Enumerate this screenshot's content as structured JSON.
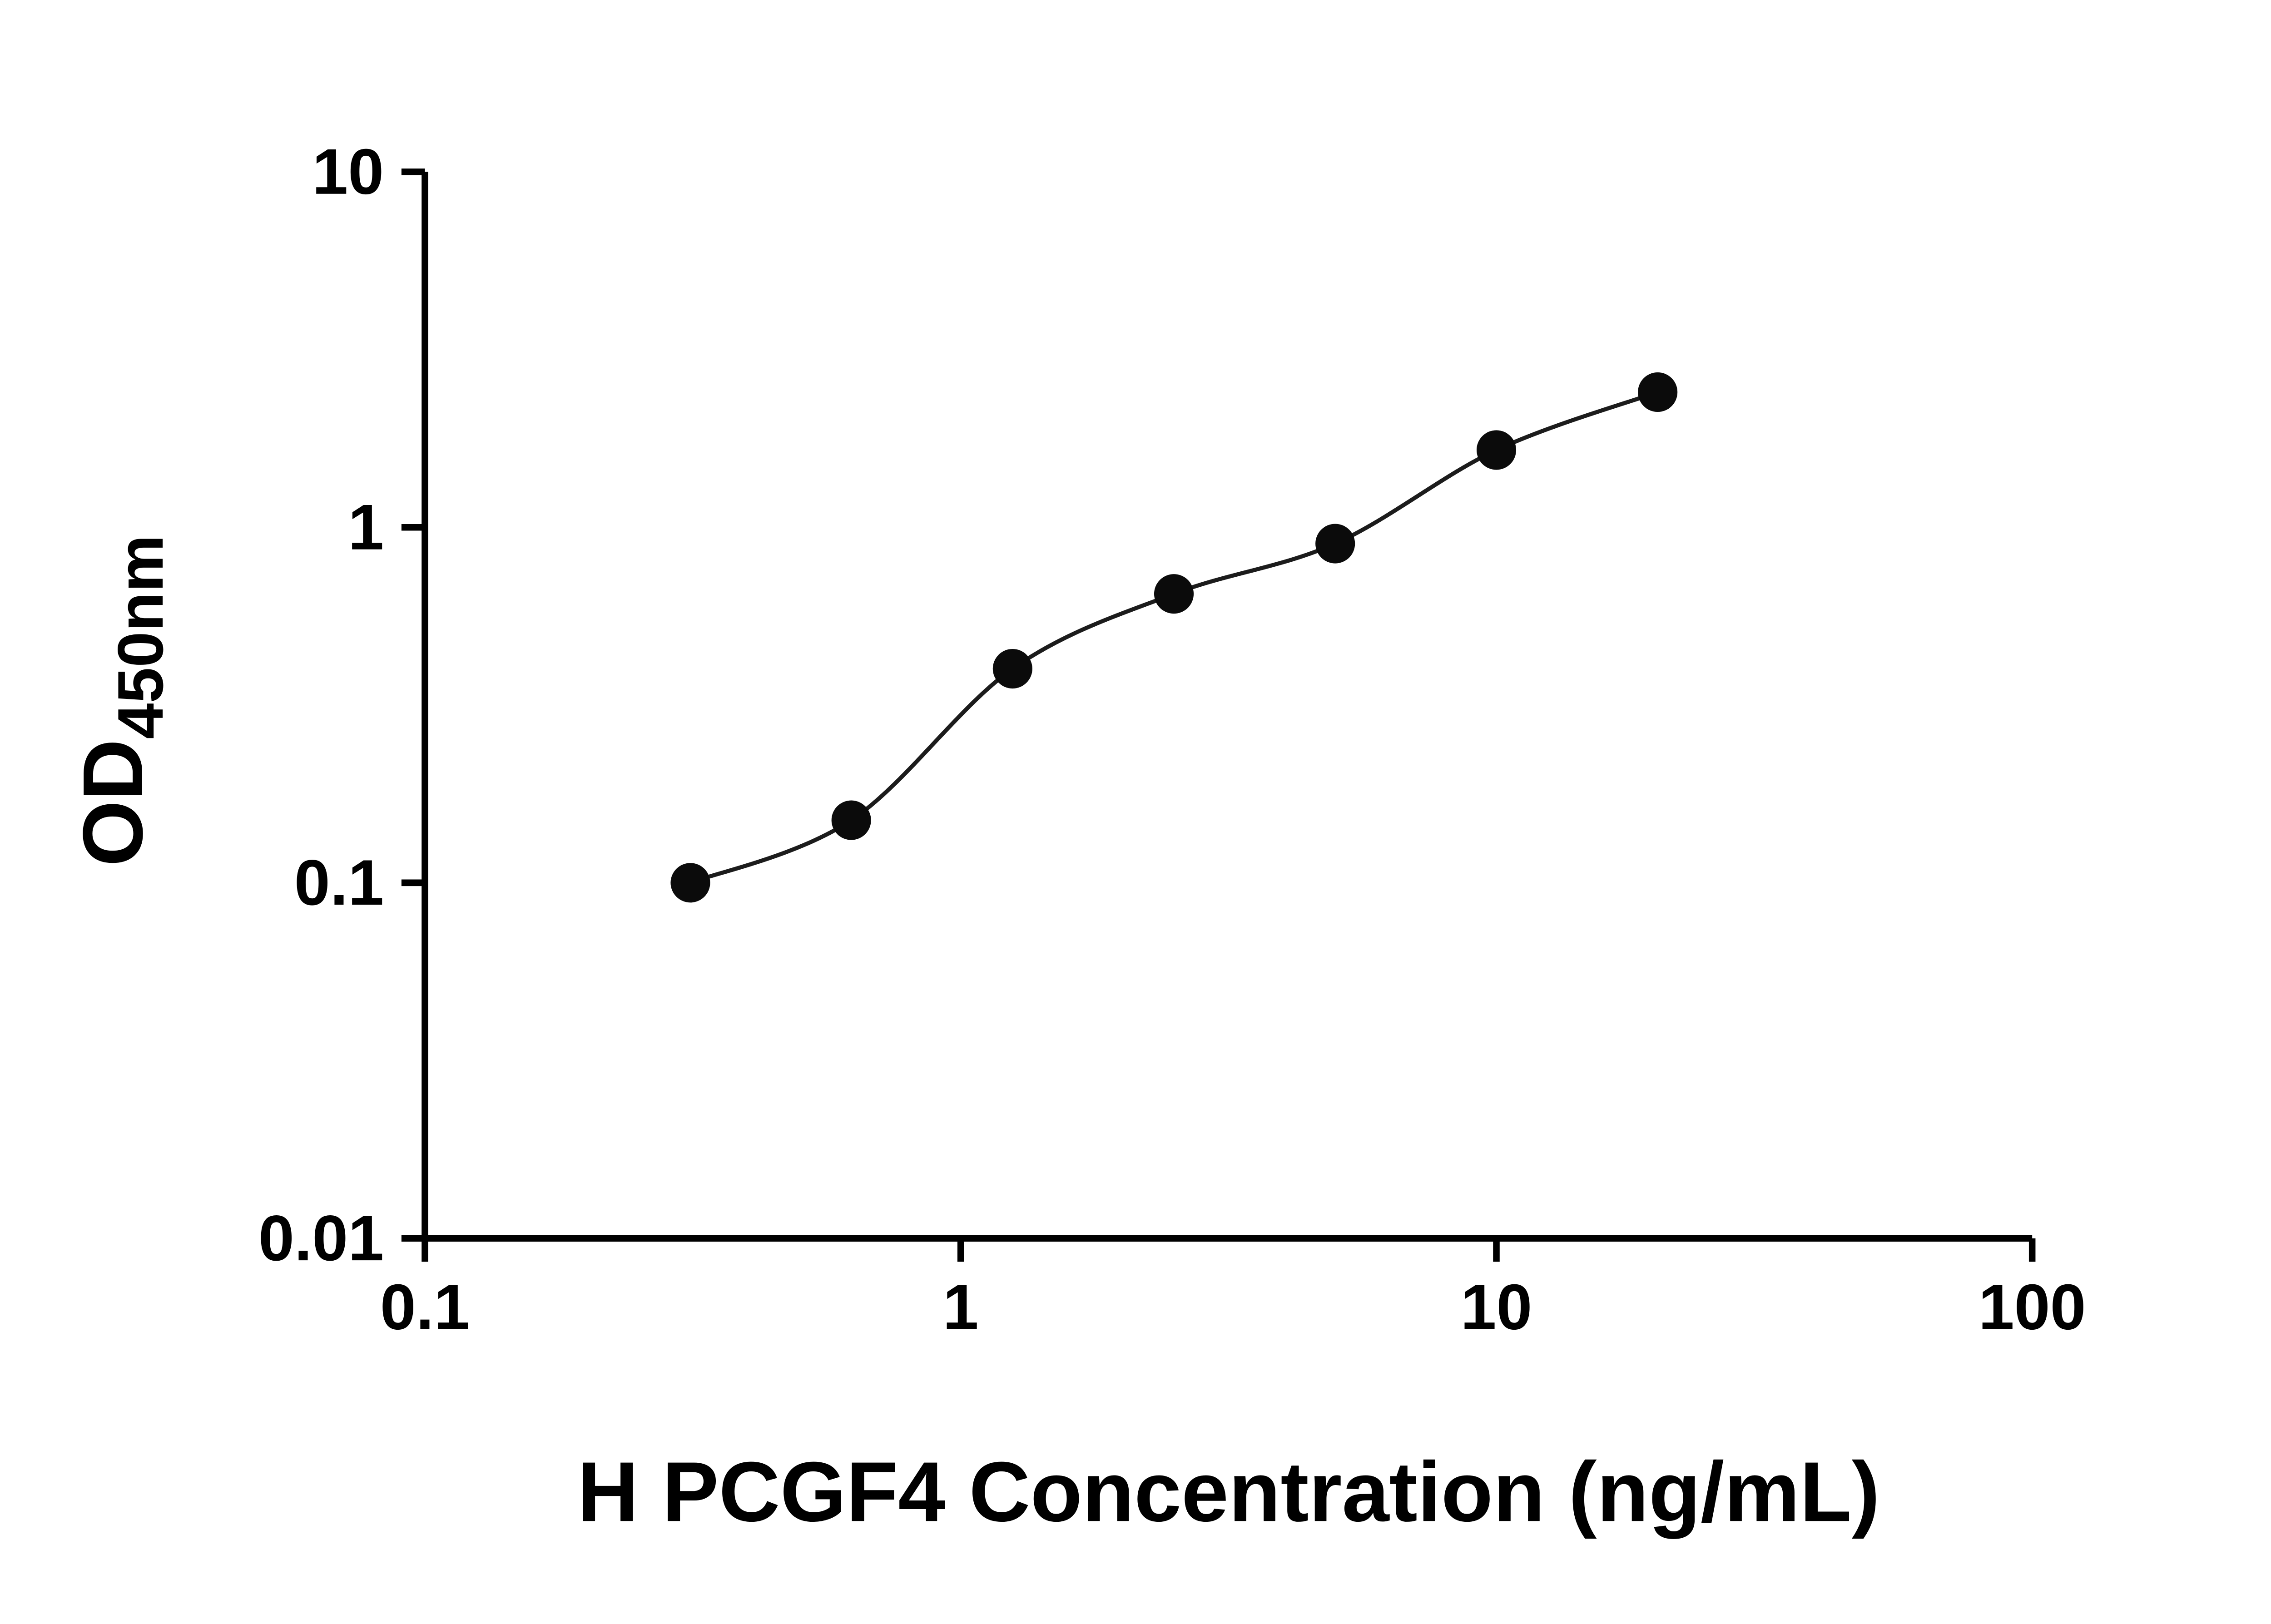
{
  "figure": {
    "background": "#ffffff"
  },
  "chart_data": {
    "type": "scatter",
    "subtype": "elisa-standard-curve",
    "title": "",
    "xlabel": "H PCGF4 Concentration (ng/mL)",
    "ylabel": "OD450nm",
    "ylabel_main": "OD",
    "ylabel_subscript": "450nm",
    "x_scale": "log10",
    "y_scale": "log10",
    "xlim": [
      0.1,
      100
    ],
    "ylim": [
      0.01,
      10
    ],
    "x_ticks": [
      {
        "value": 0.1,
        "label": "0.1"
      },
      {
        "value": 1,
        "label": "1"
      },
      {
        "value": 10,
        "label": "10"
      },
      {
        "value": 100,
        "label": "100"
      }
    ],
    "y_ticks": [
      {
        "value": 0.01,
        "label": "0.01"
      },
      {
        "value": 0.1,
        "label": "0.1"
      },
      {
        "value": 1,
        "label": "1"
      },
      {
        "value": 10,
        "label": "10"
      }
    ],
    "grid": false,
    "legend": false,
    "fit_line": "smooth",
    "axis_color": "#000000",
    "text_color": "#000000",
    "series": [
      {
        "name": "standard-curve",
        "marker": "filled-circle",
        "marker_color": "#0b0b0b",
        "line_color": "#1c1c1c",
        "points": [
          {
            "x": 0.313,
            "y": 0.1
          },
          {
            "x": 0.625,
            "y": 0.15
          },
          {
            "x": 1.25,
            "y": 0.4
          },
          {
            "x": 2.5,
            "y": 0.65
          },
          {
            "x": 5,
            "y": 0.9
          },
          {
            "x": 10,
            "y": 1.65
          },
          {
            "x": 20,
            "y": 2.4
          }
        ]
      }
    ]
  }
}
